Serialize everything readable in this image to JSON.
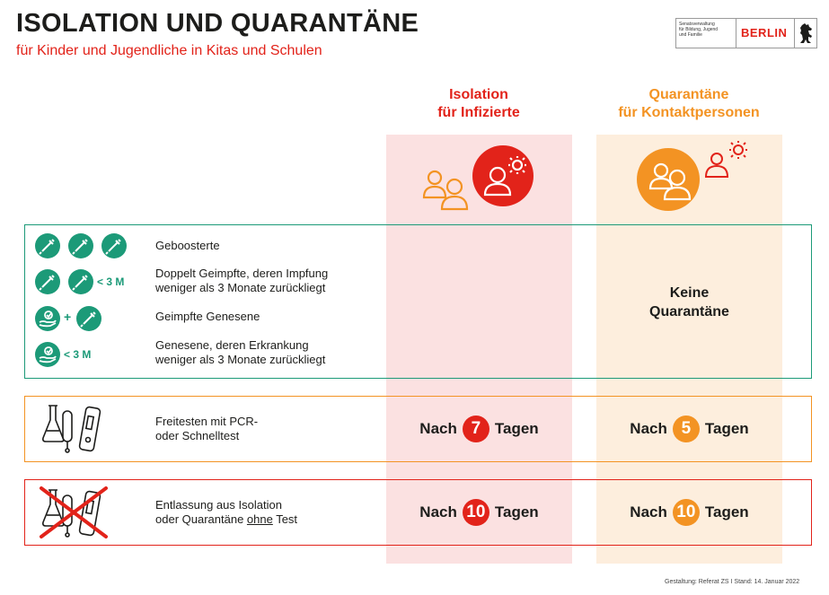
{
  "header": {
    "title": "ISOLATION UND QUARANTÄNE",
    "subtitle": "für Kinder und Jugendliche in Kitas und Schulen"
  },
  "logo": {
    "dept_lines": [
      "Senatsverwaltung",
      "für Bildung, Jugend",
      "und Familie"
    ],
    "city": "BERLIN"
  },
  "columns": {
    "isolation": {
      "line1": "Isolation",
      "line2": "für Infizierte"
    },
    "quarantine": {
      "line1": "Quarantäne",
      "line2": "für Kontaktpersonen"
    }
  },
  "groups": {
    "boosted": "Geboosterte",
    "double_vaccinated": {
      "line1": "Doppelt Geimpfte, deren Impfung",
      "line2": "weniger als 3 Monate zurückliegt",
      "badge": "< 3 M"
    },
    "vaccinated_recovered": {
      "label": "Geimpfte Genesene",
      "plus": "+"
    },
    "recovered": {
      "line1": "Genesene, deren Erkrankung",
      "line2": "weniger als 3 Monate zurückliegt",
      "badge": "< 3 M"
    },
    "no_quarantine": {
      "line1": "Keine",
      "line2": "Quarantäne"
    }
  },
  "test_release": {
    "line1": "Freitesten mit PCR-",
    "line2": "oder Schnelltest",
    "isolation": {
      "prefix": "Nach",
      "days": "7",
      "suffix": "Tagen"
    },
    "quarantine": {
      "prefix": "Nach",
      "days": "5",
      "suffix": "Tagen"
    }
  },
  "no_test_release": {
    "line1": "Entlassung aus Isolation",
    "line2_a": "oder Quarantäne ",
    "line2_u": "ohne",
    "line2_b": " Test",
    "isolation": {
      "prefix": "Nach",
      "days": "10",
      "suffix": "Tagen"
    },
    "quarantine": {
      "prefix": "Nach",
      "days": "10",
      "suffix": "Tagen"
    }
  },
  "footer": "Gestaltung: Referat ZS I   Stand: 14. Januar 2022",
  "colors": {
    "red": "#e2231a",
    "orange": "#f39323",
    "green": "#1c9a78"
  },
  "icons": [
    "syringe-icon",
    "recovered-hand-icon",
    "people-icon",
    "virus-icon",
    "test-tube-icon",
    "rapid-test-icon",
    "cross-out-icon",
    "berlin-bear-icon"
  ]
}
